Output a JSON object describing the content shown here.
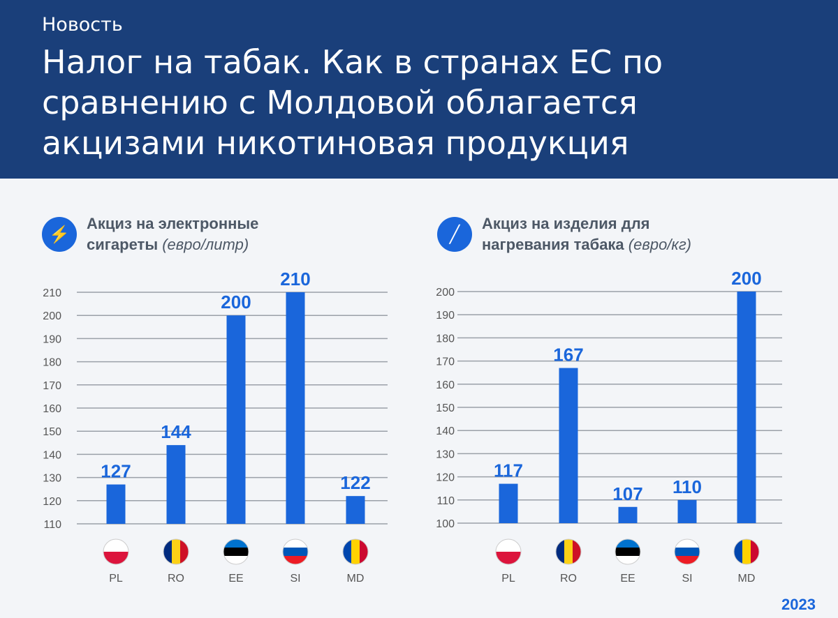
{
  "chart_data": [
    {
      "type": "bar",
      "title": "Акциз на электронные сигареты",
      "unit": "(евро/литр)",
      "icon": "e-liquid-bottle-icon",
      "categories": [
        "PL",
        "RO",
        "EE",
        "SI",
        "MD"
      ],
      "values": [
        127,
        144,
        200,
        210,
        122
      ],
      "yticks": [
        110,
        120,
        130,
        140,
        150,
        160,
        170,
        180,
        190,
        200,
        210
      ],
      "ylim": [
        110,
        210
      ],
      "grid": true
    },
    {
      "type": "bar",
      "title": "Акциз на изделия для нагревания табака",
      "unit": "(евро/кг)",
      "icon": "heated-tobacco-stick-icon",
      "categories": [
        "PL",
        "RO",
        "EE",
        "SI",
        "MD"
      ],
      "values": [
        117,
        167,
        107,
        110,
        200
      ],
      "yticks": [
        100,
        110,
        120,
        130,
        140,
        150,
        160,
        170,
        180,
        190,
        200
      ],
      "ylim": [
        100,
        200
      ],
      "grid": true
    }
  ],
  "header": {
    "left_line1": "Акциз на электронные",
    "left_line2": "сигареты",
    "left_unit": "(евро/литр)",
    "right_line1": "Акциз на изделия для",
    "right_line2": "нагревания табака",
    "right_unit": "(евро/кг)"
  },
  "overlay": {
    "headline": "Налог на табак. Как в странах ЕС по сравнению с Молдовой облагается акцизами никотиновая продукция",
    "tag": "Новость"
  },
  "year": "2023",
  "colors": {
    "bar": "#1a66db",
    "grid": "#9aa0a8",
    "text": "#4d5866"
  }
}
